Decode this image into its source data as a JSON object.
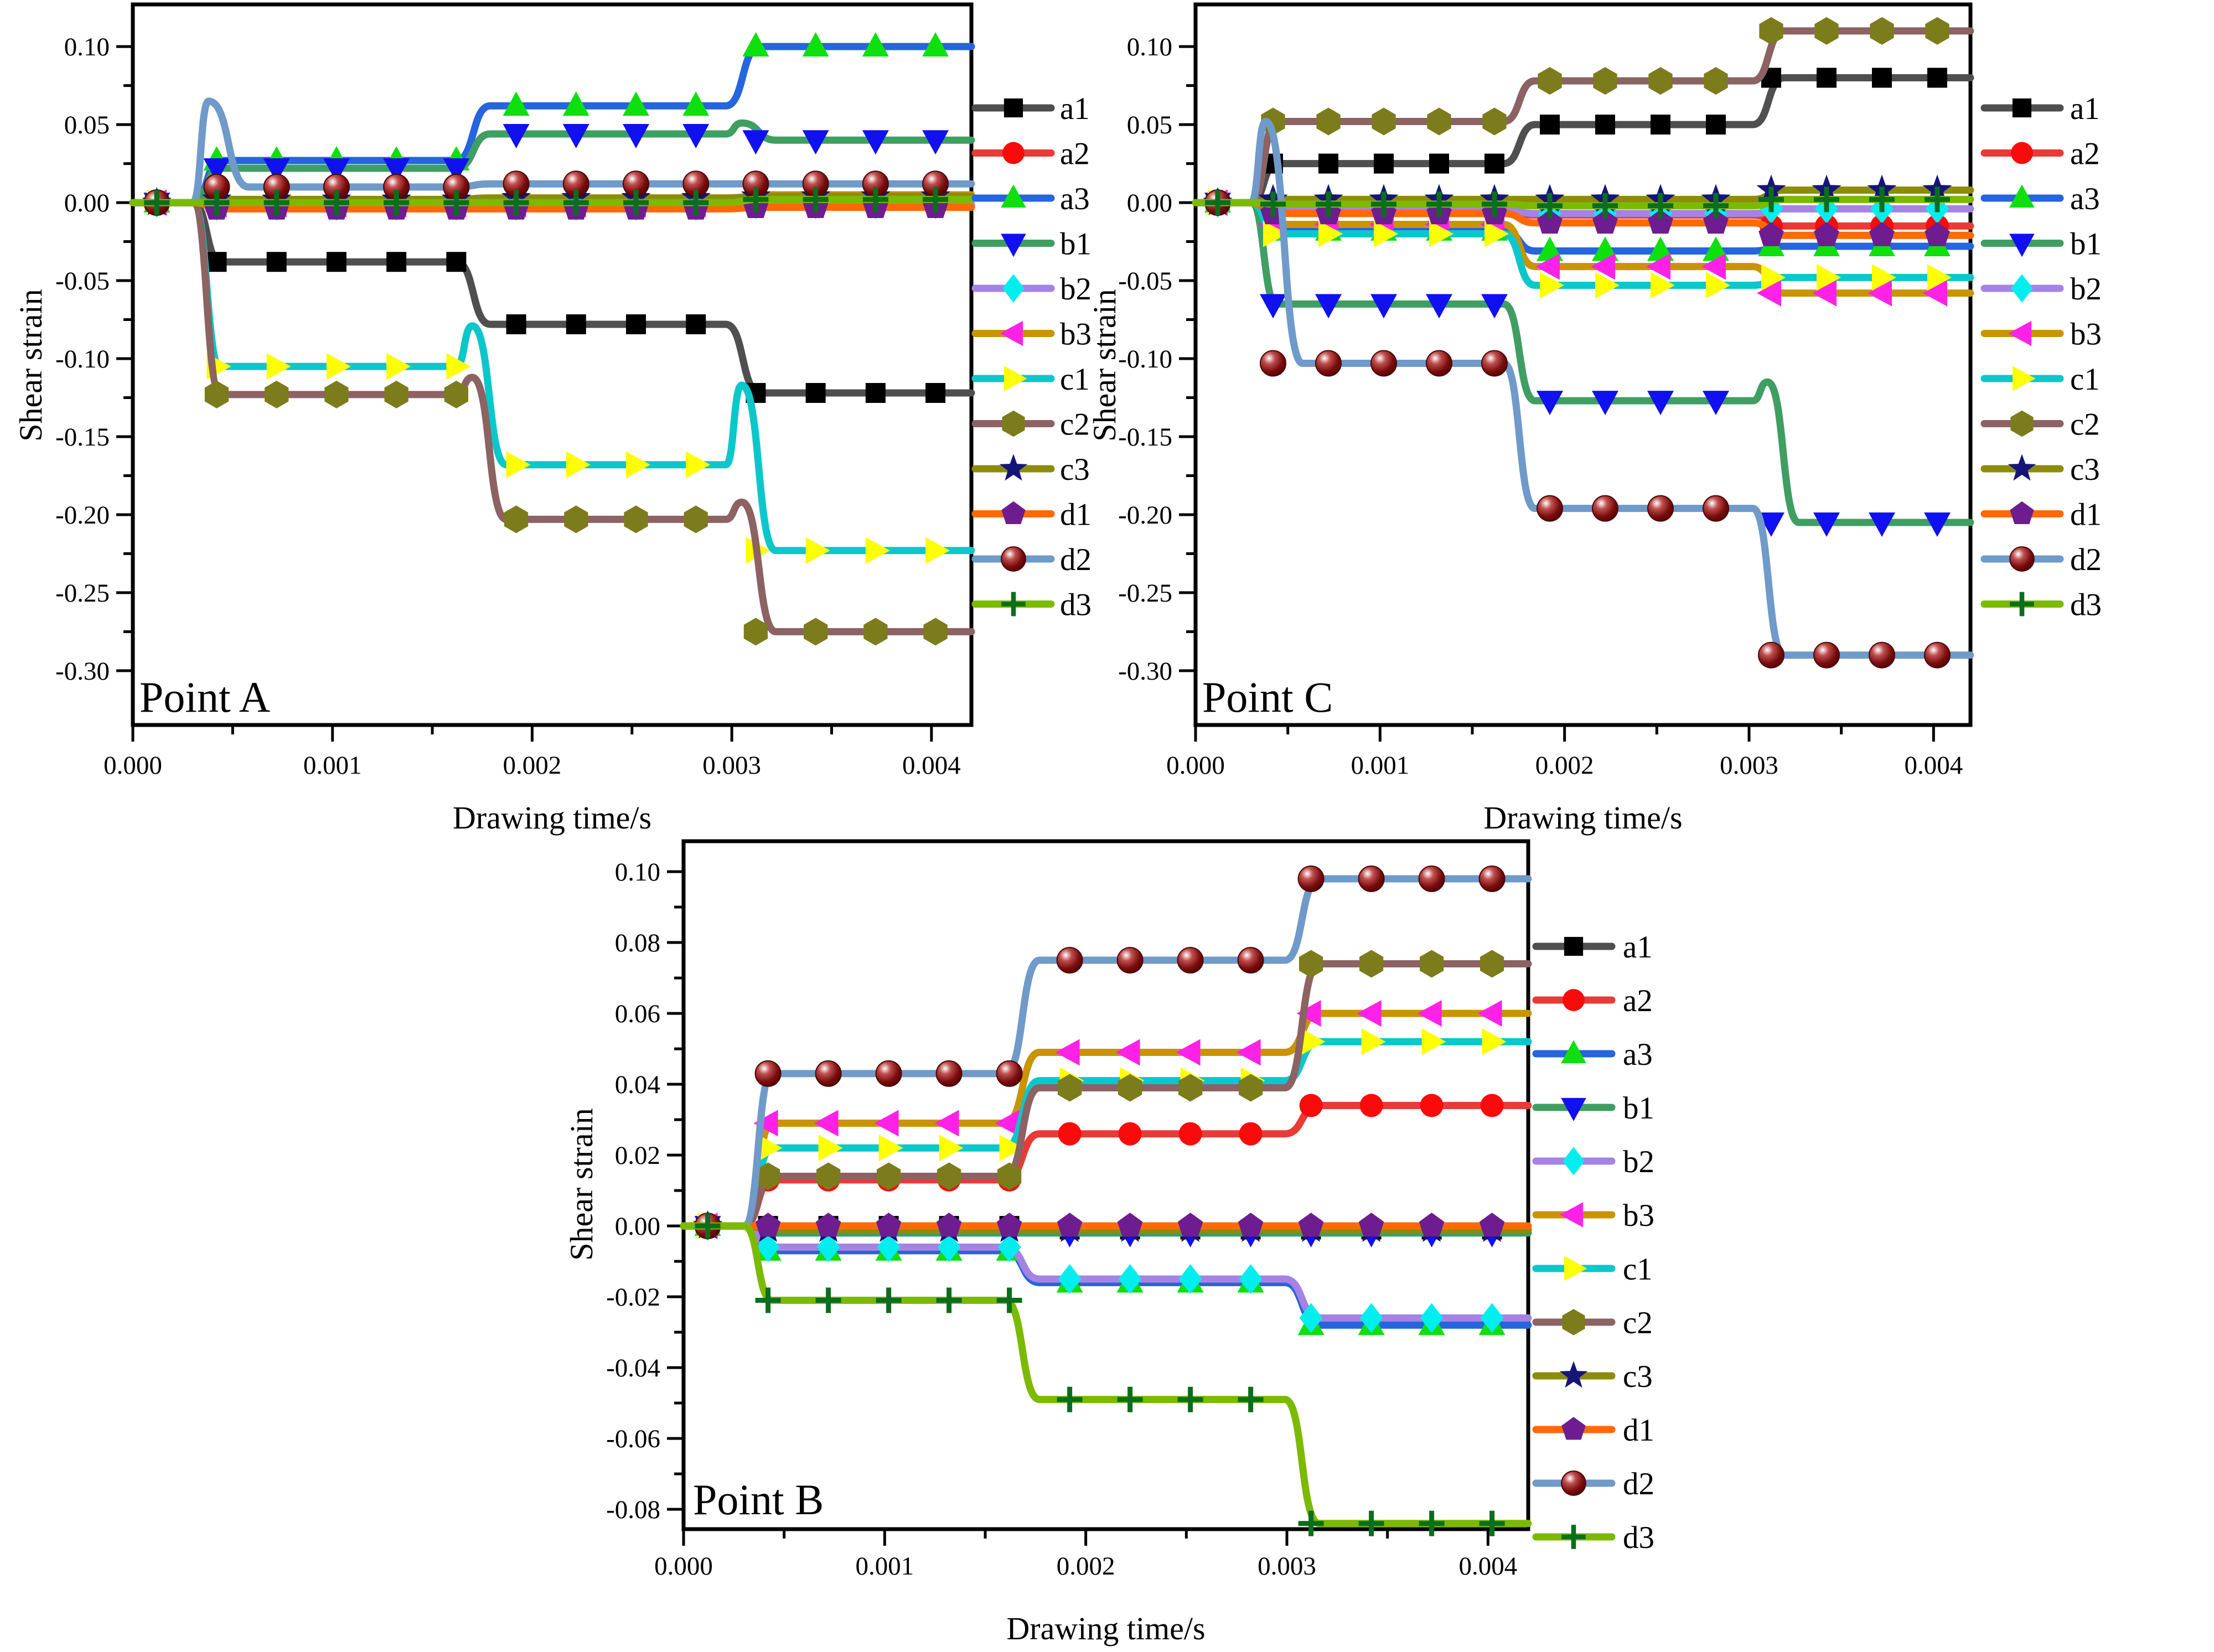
{
  "figure": {
    "background": "#ffffff",
    "x_axis_title": "Drawing time/s",
    "y_axis_title": "Shear strain",
    "series_styles": {
      "a1": {
        "line_color": "#4f4f4f",
        "marker": "square-icon",
        "marker_color": "#000000"
      },
      "a2": {
        "line_color": "#ea3a36",
        "marker": "circle-icon",
        "marker_color": "#fa0a0a"
      },
      "a3": {
        "line_color": "#2565dd",
        "marker": "triangle-up-icon",
        "marker_color": "#0de00d"
      },
      "b1": {
        "line_color": "#3f9e61",
        "marker": "triangle-down-icon",
        "marker_color": "#1010f0"
      },
      "b2": {
        "line_color": "#a583e3",
        "marker": "diamond-icon",
        "marker_color": "#00eeee"
      },
      "b3": {
        "line_color": "#c99400",
        "marker": "triangle-left-icon",
        "marker_color": "#ff22e6"
      },
      "c1": {
        "line_color": "#0bc7cb",
        "marker": "triangle-right-icon",
        "marker_color": "#ffff00"
      },
      "c2": {
        "line_color": "#8c6262",
        "marker": "hexagon-icon",
        "marker_color": "#7c7c1c"
      },
      "c3": {
        "line_color": "#8c8c09",
        "marker": "star-icon",
        "marker_color": "#151578"
      },
      "d1": {
        "line_color": "#fe6903",
        "marker": "pentagon-icon",
        "marker_color": "#6d1d8f"
      },
      "d2": {
        "line_color": "#6f9ac9",
        "marker": "sphere-icon",
        "marker_color": "#7a0c0c"
      },
      "d3": {
        "line_color": "#7cba00",
        "marker": "plus-icon",
        "marker_color": "#0b6e1e"
      }
    }
  },
  "chart_data": [
    {
      "type": "line",
      "title": "Point A",
      "xlabel": "Drawing time/s",
      "ylabel": "Shear strain",
      "legend_position": "right",
      "grid": false,
      "xlim": [
        0.0,
        0.0042
      ],
      "ylim": [
        -0.3348,
        0.127
      ],
      "xtick_values": [
        0.0,
        0.001,
        0.002,
        0.003,
        0.004
      ],
      "xtick_labels": [
        "0.000",
        "0.001",
        "0.002",
        "0.003",
        "0.004"
      ],
      "ytick_values": [
        0.1,
        0.05,
        0.0,
        -0.05,
        -0.1,
        -0.15,
        -0.2,
        -0.25,
        -0.3
      ],
      "ytick_labels": [
        "0.10",
        "0.05",
        "0.00",
        "-0.05",
        "-0.10",
        "-0.15",
        "-0.20",
        "-0.25",
        "-0.30"
      ],
      "step_times": [
        0.0003,
        0.00165,
        0.003
      ],
      "marker_x_start": 0.00012,
      "marker_x_step": 0.0003,
      "legend_labels": [
        "a1",
        "a2",
        "a3",
        "b1",
        "b2",
        "b3",
        "c1",
        "c2",
        "c3",
        "d1",
        "d2",
        "d3"
      ],
      "series": [
        {
          "name": "a1",
          "levels": [
            -0.038,
            -0.078,
            -0.122
          ]
        },
        {
          "name": "a2",
          "levels": [
            -0.003,
            -0.002,
            -0.002
          ]
        },
        {
          "name": "a3",
          "levels": [
            0.027,
            0.062,
            0.1
          ]
        },
        {
          "name": "b1",
          "levels": [
            0.022,
            0.044,
            0.04
          ],
          "bumps": [
            null,
            0.051
          ]
        },
        {
          "name": "b2",
          "levels": [
            -0.002,
            -0.002,
            -0.001
          ]
        },
        {
          "name": "b3",
          "levels": [
            -0.001,
            -0.001,
            0.005
          ]
        },
        {
          "name": "c1",
          "levels": [
            -0.105,
            -0.168,
            -0.223
          ],
          "bumps": [
            -0.079,
            -0.117
          ]
        },
        {
          "name": "c2",
          "levels": [
            -0.123,
            -0.203,
            -0.275
          ],
          "bumps": [
            -0.112,
            -0.192
          ]
        },
        {
          "name": "c3",
          "levels": [
            0.002,
            0.003,
            0.004
          ]
        },
        {
          "name": "d1",
          "levels": [
            -0.004,
            -0.004,
            -0.003
          ]
        },
        {
          "name": "d2",
          "levels": [
            0.01,
            0.012,
            0.012
          ],
          "spike": 0.065
        },
        {
          "name": "d3",
          "levels": [
            0.0,
            0.0,
            0.002
          ]
        }
      ]
    },
    {
      "type": "line",
      "title": "Point C",
      "xlabel": "Drawing time/s",
      "ylabel": "Shear strain",
      "legend_position": "right",
      "grid": false,
      "xlim": [
        0.0,
        0.0042
      ],
      "ylim": [
        -0.3348,
        0.127
      ],
      "xtick_values": [
        0.0,
        0.001,
        0.002,
        0.003,
        0.004
      ],
      "xtick_labels": [
        "0.000",
        "0.001",
        "0.002",
        "0.003",
        "0.004"
      ],
      "ytick_values": [
        0.1,
        0.05,
        0.0,
        -0.05,
        -0.1,
        -0.15,
        -0.2,
        -0.25,
        -0.3
      ],
      "ytick_labels": [
        "0.10",
        "0.05",
        "0.00",
        "-0.05",
        "-0.10",
        "-0.15",
        "-0.20",
        "-0.25",
        "-0.30"
      ],
      "step_times": [
        0.0003,
        0.0017,
        0.00305
      ],
      "marker_x_start": 0.00012,
      "marker_x_step": 0.0003,
      "legend_labels": [
        "a1",
        "a2",
        "a3",
        "b1",
        "b2",
        "b3",
        "c1",
        "c2",
        "c3",
        "d1",
        "d2",
        "d3"
      ],
      "series": [
        {
          "name": "a1",
          "levels": [
            0.025,
            0.05,
            0.08
          ]
        },
        {
          "name": "a2",
          "levels": [
            -0.005,
            -0.008,
            -0.015
          ]
        },
        {
          "name": "a3",
          "levels": [
            -0.018,
            -0.031,
            -0.028
          ]
        },
        {
          "name": "b1",
          "levels": [
            -0.065,
            -0.127,
            -0.205
          ],
          "bumps": [
            null,
            -0.115
          ]
        },
        {
          "name": "b2",
          "levels": [
            -0.004,
            -0.007,
            -0.004
          ]
        },
        {
          "name": "b3",
          "levels": [
            -0.014,
            -0.041,
            -0.058
          ]
        },
        {
          "name": "c1",
          "levels": [
            -0.02,
            -0.053,
            -0.048
          ]
        },
        {
          "name": "c2",
          "levels": [
            0.052,
            0.078,
            0.11
          ]
        },
        {
          "name": "c3",
          "levels": [
            0.002,
            0.002,
            0.008
          ]
        },
        {
          "name": "d1",
          "levels": [
            -0.007,
            -0.013,
            -0.021
          ]
        },
        {
          "name": "d2",
          "levels": [
            -0.103,
            -0.196,
            -0.29
          ],
          "spike": 0.052
        },
        {
          "name": "d3",
          "levels": [
            -0.001,
            -0.002,
            0.002
          ]
        }
      ]
    },
    {
      "type": "line",
      "title": "Point B",
      "xlabel": "Drawing time/s",
      "ylabel": "Shear strain",
      "legend_position": "right",
      "grid": false,
      "xlim": [
        0.0,
        0.0042
      ],
      "ylim": [
        -0.0856,
        0.1086
      ],
      "xtick_values": [
        0.0,
        0.001,
        0.002,
        0.003,
        0.004
      ],
      "xtick_labels": [
        "0.000",
        "0.001",
        "0.002",
        "0.003",
        "0.004"
      ],
      "ytick_values": [
        0.1,
        0.08,
        0.06,
        0.04,
        0.02,
        0.0,
        -0.02,
        -0.04,
        -0.06,
        -0.08
      ],
      "ytick_labels": [
        "0.10",
        "0.08",
        "0.06",
        "0.04",
        "0.02",
        "0.00",
        "-0.02",
        "-0.04",
        "-0.06",
        "-0.08"
      ],
      "step_times": [
        0.0003,
        0.00163,
        0.00302
      ],
      "marker_x_start": 0.00012,
      "marker_x_step": 0.0003,
      "legend_labels": [
        "a1",
        "a2",
        "a3",
        "b1",
        "b2",
        "b3",
        "c1",
        "c2",
        "c3",
        "d1",
        "d2",
        "d3"
      ],
      "series": [
        {
          "name": "a1",
          "levels": [
            0.0,
            -0.001,
            -0.001
          ]
        },
        {
          "name": "a2",
          "levels": [
            0.013,
            0.026,
            0.034
          ]
        },
        {
          "name": "a3",
          "levels": [
            -0.007,
            -0.016,
            -0.028
          ]
        },
        {
          "name": "b1",
          "levels": [
            -0.002,
            -0.002,
            -0.002
          ]
        },
        {
          "name": "b2",
          "levels": [
            -0.006,
            -0.015,
            -0.026
          ]
        },
        {
          "name": "b3",
          "levels": [
            0.029,
            0.049,
            0.06
          ]
        },
        {
          "name": "c1",
          "levels": [
            0.022,
            0.041,
            0.052
          ]
        },
        {
          "name": "c2",
          "levels": [
            0.014,
            0.039,
            0.074
          ]
        },
        {
          "name": "c3",
          "levels": [
            -0.001,
            -0.001,
            -0.001
          ]
        },
        {
          "name": "d1",
          "levels": [
            0.0,
            0.0,
            0.0
          ]
        },
        {
          "name": "d2",
          "levels": [
            0.043,
            0.075,
            0.098
          ]
        },
        {
          "name": "d3",
          "levels": [
            -0.021,
            -0.049,
            -0.084
          ]
        }
      ]
    }
  ]
}
